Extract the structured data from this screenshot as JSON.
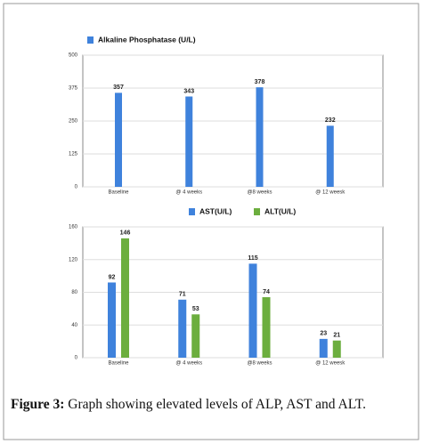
{
  "chart_data": [
    {
      "type": "bar",
      "categories": [
        "Baseline",
        "@ 4 weeks",
        "@8 weeks",
        "@ 12 weesk"
      ],
      "series": [
        {
          "name": "Alkaline Phosphatase (U/L)",
          "color": "#3f82dc",
          "values": [
            357,
            343,
            378,
            232
          ]
        }
      ],
      "ylim": [
        0,
        500
      ],
      "yticks": [
        0,
        125,
        250,
        375,
        500
      ],
      "grid": true
    },
    {
      "type": "bar",
      "categories": [
        "Baseline",
        "@ 4 weeks",
        "@8 weeks",
        "@ 12 weesk"
      ],
      "series": [
        {
          "name": "AST(U/L)",
          "color": "#3f82dc",
          "values": [
            92,
            71,
            115,
            23
          ]
        },
        {
          "name": "ALT(U/L)",
          "color": "#6cae3e",
          "values": [
            146,
            53,
            74,
            21
          ]
        }
      ],
      "ylim": [
        0,
        160
      ],
      "yticks": [
        0,
        40,
        80,
        120,
        160
      ],
      "grid": true
    }
  ],
  "caption": {
    "label": "Figure 3:",
    "text": "Graph showing elevated levels of ALP, AST and ALT."
  }
}
